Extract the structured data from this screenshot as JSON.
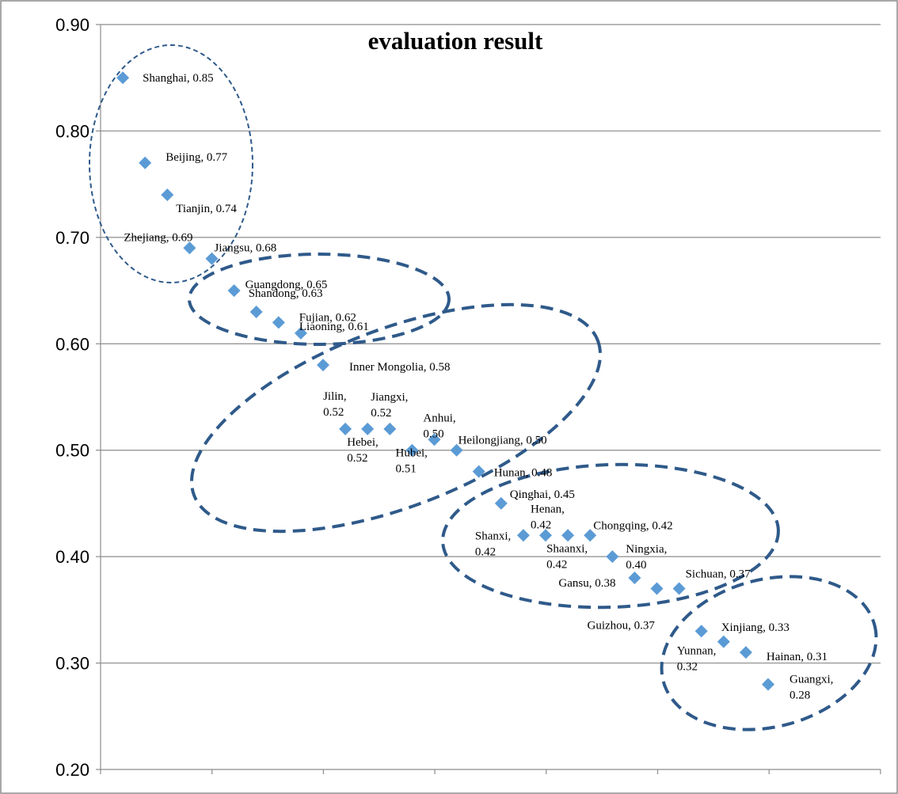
{
  "chart_data": {
    "type": "scatter",
    "title": "evaluation result",
    "xlabel": "",
    "ylabel": "",
    "ylim": [
      0.2,
      0.9
    ],
    "y_ticks": [
      "0.90",
      "0.80",
      "0.70",
      "0.60",
      "0.50",
      "0.40",
      "0.30",
      "0.20"
    ],
    "grid": "horizontal",
    "marker": "diamond",
    "colors": {
      "marker": "#5b9bd5",
      "ellipse": "#2f5a8a",
      "grid": "#8c8c8c"
    },
    "points": [
      {
        "name": "Shanghai",
        "x": 1,
        "y": 0.85,
        "lines": [
          "Shanghai, 0.85"
        ]
      },
      {
        "name": "Beijing",
        "x": 2,
        "y": 0.77,
        "lines": [
          "Beijing, 0.77"
        ]
      },
      {
        "name": "Tianjin",
        "x": 3,
        "y": 0.74,
        "lines": [
          "Tianjin, 0.74"
        ]
      },
      {
        "name": "Zhejiang",
        "x": 4,
        "y": 0.69,
        "lines": [
          "Zhejiang, 0.69"
        ]
      },
      {
        "name": "Jiangsu",
        "x": 5,
        "y": 0.68,
        "lines": [
          "Jiangsu, 0.68"
        ]
      },
      {
        "name": "Guangdong",
        "x": 6,
        "y": 0.65,
        "lines": [
          "Guangdong, 0.65"
        ]
      },
      {
        "name": "Shandong",
        "x": 7,
        "y": 0.63,
        "lines": [
          "Shandong, 0.63"
        ]
      },
      {
        "name": "Fujian",
        "x": 8,
        "y": 0.62,
        "lines": [
          "Fujian, 0.62"
        ]
      },
      {
        "name": "Liaoning",
        "x": 9,
        "y": 0.61,
        "lines": [
          "Liaoning, 0.61"
        ]
      },
      {
        "name": "Inner Mongolia",
        "x": 10,
        "y": 0.58,
        "lines": [
          "Inner Mongolia, 0.58"
        ]
      },
      {
        "name": "Jilin",
        "x": 11,
        "y": 0.52,
        "lines": [
          "Jilin,",
          "0.52"
        ]
      },
      {
        "name": "Hebei",
        "x": 12,
        "y": 0.52,
        "lines": [
          "Hebei,",
          "0.52"
        ]
      },
      {
        "name": "Jiangxi",
        "x": 13,
        "y": 0.52,
        "lines": [
          "Jiangxi,",
          "0.52"
        ]
      },
      {
        "name": "Anhui",
        "x": 14,
        "y": 0.5,
        "lines": [
          "Anhui,",
          "0.50"
        ]
      },
      {
        "name": "Hubei",
        "x": 15,
        "y": 0.51,
        "lines": [
          "Hubei,",
          "0.51"
        ]
      },
      {
        "name": "Heilongjiang",
        "x": 16,
        "y": 0.5,
        "lines": [
          "Heilongjiang, 0.50"
        ]
      },
      {
        "name": "Hunan",
        "x": 17,
        "y": 0.48,
        "lines": [
          "Hunan, 0.48"
        ]
      },
      {
        "name": "Qinghai",
        "x": 18,
        "y": 0.45,
        "lines": [
          "Qinghai, 0.45"
        ]
      },
      {
        "name": "Shanxi",
        "x": 19,
        "y": 0.42,
        "lines": [
          "Shanxi,",
          "0.42"
        ]
      },
      {
        "name": "Henan",
        "x": 20,
        "y": 0.42,
        "lines": [
          "Henan,",
          "0.42"
        ]
      },
      {
        "name": "Shaanxi",
        "x": 21,
        "y": 0.42,
        "lines": [
          "Shaanxi,",
          "0.42"
        ]
      },
      {
        "name": "Chongqing",
        "x": 22,
        "y": 0.42,
        "lines": [
          "Chongqing, 0.42"
        ]
      },
      {
        "name": "Ningxia",
        "x": 23,
        "y": 0.4,
        "lines": [
          "Ningxia,",
          "0.40"
        ]
      },
      {
        "name": "Gansu",
        "x": 24,
        "y": 0.38,
        "lines": [
          "Gansu, 0.38"
        ]
      },
      {
        "name": "Guizhou",
        "x": 25,
        "y": 0.37,
        "lines": [
          "Guizhou, 0.37"
        ]
      },
      {
        "name": "Sichuan",
        "x": 26,
        "y": 0.37,
        "lines": [
          "Sichuan, 0.37"
        ]
      },
      {
        "name": "Xinjiang",
        "x": 27,
        "y": 0.33,
        "lines": [
          "Xinjiang, 0.33"
        ]
      },
      {
        "name": "Yunnan",
        "x": 28,
        "y": 0.32,
        "lines": [
          "Yunnan,",
          "0.32"
        ]
      },
      {
        "name": "Hainan",
        "x": 29,
        "y": 0.31,
        "lines": [
          "Hainan, 0.31"
        ]
      },
      {
        "name": "Guangxi",
        "x": 30,
        "y": 0.28,
        "lines": [
          "Guangxi,",
          "0.28"
        ]
      }
    ]
  }
}
